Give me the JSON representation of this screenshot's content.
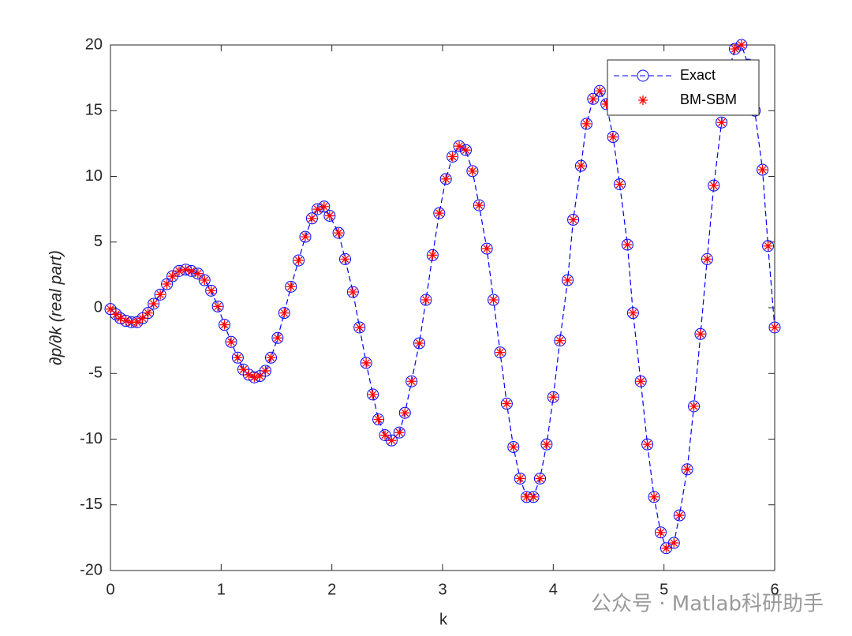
{
  "chart_data": {
    "type": "line",
    "xlabel": "k",
    "ylabel": "∂p/∂k (real part)",
    "x": [
      0,
      0.05,
      0.09,
      0.14,
      0.19,
      0.24,
      0.29,
      0.34,
      0.39,
      0.45,
      0.51,
      0.56,
      0.62,
      0.68,
      0.73,
      0.79,
      0.85,
      0.91,
      0.97,
      1.03,
      1.09,
      1.15,
      1.2,
      1.25,
      1.3,
      1.35,
      1.4,
      1.45,
      1.51,
      1.57,
      1.63,
      1.7,
      1.76,
      1.82,
      1.87,
      1.93,
      1.98,
      2.06,
      2.12,
      2.19,
      2.25,
      2.31,
      2.37,
      2.42,
      2.48,
      2.54,
      2.61,
      2.66,
      2.72,
      2.79,
      2.85,
      2.91,
      2.97,
      3.03,
      3.09,
      3.15,
      3.21,
      3.27,
      3.33,
      3.4,
      3.46,
      3.52,
      3.58,
      3.64,
      3.7,
      3.76,
      3.82,
      3.88,
      3.94,
      4.0,
      4.06,
      4.13,
      4.18,
      4.25,
      4.3,
      4.36,
      4.42,
      4.48,
      4.54,
      4.6,
      4.67,
      4.72,
      4.79,
      4.85,
      4.91,
      4.97,
      5.02,
      5.09,
      5.14,
      5.21,
      5.27,
      5.33,
      5.39,
      5.45,
      5.52,
      5.57,
      5.64,
      5.7,
      5.76,
      5.82,
      5.89,
      5.94,
      6.0
    ],
    "series": [
      {
        "name": "Exact",
        "color": "#0000ff",
        "marker": "circle",
        "linestyle": "dashed",
        "values": [
          -0.1,
          -0.5,
          -0.8,
          -1.0,
          -1.1,
          -1.1,
          -0.8,
          -0.4,
          0.3,
          1.0,
          1.8,
          2.4,
          2.8,
          2.9,
          2.8,
          2.6,
          2.1,
          1.3,
          0.1,
          -1.3,
          -2.6,
          -3.8,
          -4.7,
          -5.1,
          -5.3,
          -5.2,
          -4.8,
          -3.8,
          -2.3,
          -0.4,
          1.6,
          3.6,
          5.4,
          6.8,
          7.5,
          7.7,
          7.0,
          5.7,
          3.7,
          1.2,
          -1.5,
          -4.2,
          -6.6,
          -8.5,
          -9.7,
          -10.1,
          -9.5,
          -8.0,
          -5.6,
          -2.7,
          0.6,
          4.0,
          7.2,
          9.8,
          11.5,
          12.3,
          12.0,
          10.4,
          7.8,
          4.5,
          0.6,
          -3.4,
          -7.3,
          -10.6,
          -13.0,
          -14.4,
          -14.4,
          -13.0,
          -10.4,
          -6.8,
          -2.5,
          2.1,
          6.7,
          10.8,
          14.0,
          15.9,
          16.5,
          15.5,
          13.0,
          9.4,
          4.8,
          -0.4,
          -5.6,
          -10.4,
          -14.4,
          -17.1,
          -18.3,
          -17.9,
          -15.8,
          -12.3,
          -7.5,
          -2.0,
          3.7,
          9.3,
          14.1,
          17.5,
          19.7,
          20.0,
          18.5,
          15.0,
          10.5,
          4.7,
          -1.5
        ]
      },
      {
        "name": "BM-SBM",
        "color": "#ff0000",
        "marker": "asterisk",
        "linestyle": "none",
        "values": [
          -0.1,
          -0.5,
          -0.8,
          -1.0,
          -1.1,
          -1.1,
          -0.8,
          -0.4,
          0.3,
          1.0,
          1.8,
          2.4,
          2.8,
          2.9,
          2.8,
          2.6,
          2.1,
          1.3,
          0.1,
          -1.3,
          -2.6,
          -3.8,
          -4.7,
          -5.1,
          -5.3,
          -5.2,
          -4.8,
          -3.8,
          -2.3,
          -0.4,
          1.6,
          3.6,
          5.4,
          6.8,
          7.5,
          7.7,
          7.0,
          5.7,
          3.7,
          1.2,
          -1.5,
          -4.2,
          -6.6,
          -8.5,
          -9.7,
          -10.1,
          -9.5,
          -8.0,
          -5.6,
          -2.7,
          0.6,
          4.0,
          7.2,
          9.8,
          11.5,
          12.3,
          12.0,
          10.4,
          7.8,
          4.5,
          0.6,
          -3.4,
          -7.3,
          -10.6,
          -13.0,
          -14.4,
          -14.4,
          -13.0,
          -10.4,
          -6.8,
          -2.5,
          2.1,
          6.7,
          10.8,
          14.0,
          15.9,
          16.5,
          15.5,
          13.0,
          9.4,
          4.8,
          -0.4,
          -5.6,
          -10.4,
          -14.4,
          -17.1,
          -18.3,
          -17.9,
          -15.8,
          -12.3,
          -7.5,
          -2.0,
          3.7,
          9.3,
          14.1,
          17.5,
          19.7,
          20.0,
          18.5,
          15.0,
          10.5,
          4.7,
          -1.5
        ]
      }
    ],
    "xlim": [
      0,
      6
    ],
    "xticks": [
      0,
      1,
      2,
      3,
      4,
      5,
      6
    ],
    "ylim": [
      -20,
      20
    ],
    "yticks": [
      -20,
      -15,
      -10,
      -5,
      0,
      5,
      10,
      15,
      20
    ],
    "legend": "upper right",
    "grid": false
  },
  "watermark": "公众号 · Matlab科研助手"
}
